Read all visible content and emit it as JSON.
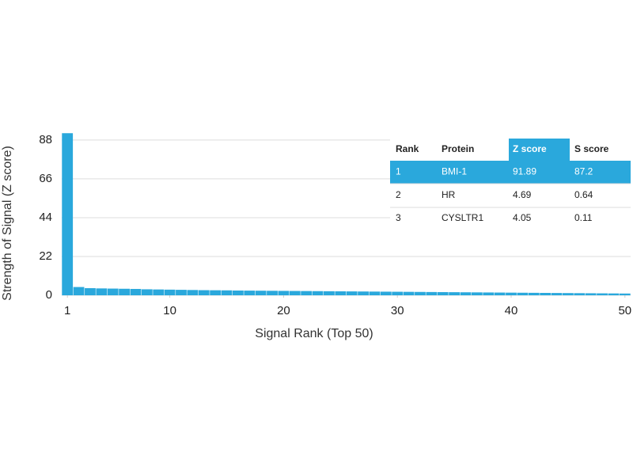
{
  "chart_data": {
    "type": "bar",
    "xlabel": "Signal Rank (Top 50)",
    "ylabel": "Strength of Signal (Z score)",
    "x": [
      1,
      2,
      3,
      4,
      5,
      6,
      7,
      8,
      9,
      10,
      11,
      12,
      13,
      14,
      15,
      16,
      17,
      18,
      19,
      20,
      21,
      22,
      23,
      24,
      25,
      26,
      27,
      28,
      29,
      30,
      31,
      32,
      33,
      34,
      35,
      36,
      37,
      38,
      39,
      40,
      41,
      42,
      43,
      44,
      45,
      46,
      47,
      48,
      49,
      50
    ],
    "values": [
      91.89,
      4.69,
      4.05,
      3.9,
      3.8,
      3.7,
      3.6,
      3.4,
      3.3,
      3.2,
      3.1,
      3.0,
      2.9,
      2.85,
      2.8,
      2.7,
      2.65,
      2.6,
      2.55,
      2.5,
      2.45,
      2.4,
      2.35,
      2.3,
      2.25,
      2.2,
      2.15,
      2.1,
      2.05,
      2.0,
      1.95,
      1.9,
      1.85,
      1.8,
      1.75,
      1.7,
      1.65,
      1.6,
      1.55,
      1.5,
      1.45,
      1.4,
      1.35,
      1.3,
      1.25,
      1.2,
      1.15,
      1.1,
      1.05,
      1.0
    ],
    "color": "#2aa8dc",
    "xlim": [
      0.5,
      50.5
    ],
    "xticks": [
      1,
      10,
      20,
      30,
      40,
      50
    ],
    "ylim": [
      0,
      92
    ],
    "yticks": [
      0,
      22,
      44,
      66,
      88
    ],
    "grid": true
  },
  "table": {
    "header": [
      "Rank",
      "Protein",
      "Z score",
      "S score"
    ],
    "rows": [
      [
        "1",
        "BMI-1",
        "91.89",
        "87.2"
      ],
      [
        "2",
        "HR",
        "4.69",
        "0.64"
      ],
      [
        "3",
        "CYSLTR1",
        "4.05",
        "0.11"
      ]
    ]
  }
}
